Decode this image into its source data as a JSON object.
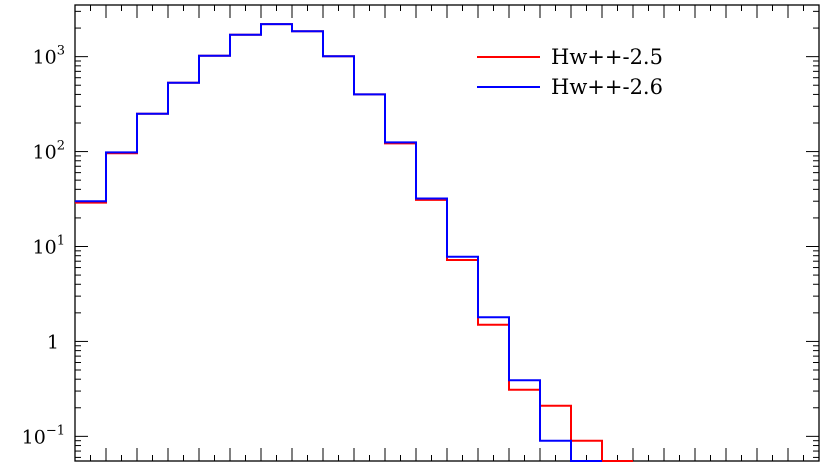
{
  "chart_data": {
    "type": "line",
    "step": true,
    "yscale": "log",
    "ylim": [
      0.055,
      3500
    ],
    "xlim": [
      0,
      24
    ],
    "x_edges": [
      0,
      1,
      2,
      3,
      4,
      5,
      6,
      7,
      8,
      9,
      10,
      11,
      12,
      13,
      14,
      15,
      16,
      17,
      18,
      19,
      20,
      21,
      22,
      23,
      24
    ],
    "y_ticks": [
      {
        "value": 1000,
        "mantissa": "10",
        "exp": "3"
      },
      {
        "value": 100,
        "mantissa": "10",
        "exp": "2"
      },
      {
        "value": 10,
        "mantissa": "10",
        "exp": "1"
      },
      {
        "value": 1,
        "mantissa": "1",
        "exp": ""
      },
      {
        "value": 0.1,
        "mantissa": "10",
        "exp": "−1"
      }
    ],
    "legend_position": "top-right",
    "series": [
      {
        "name": "Hw++-2.5",
        "color": "#ff0000",
        "values": [
          29,
          96,
          250,
          530,
          1020,
          1700,
          2200,
          1850,
          1010,
          400,
          122,
          31,
          7.2,
          1.5,
          0.31,
          0.21,
          0.09,
          0.05
        ]
      },
      {
        "name": "Hw++-2.6",
        "color": "#0000ff",
        "values": [
          30,
          98,
          250,
          530,
          1020,
          1700,
          2200,
          1850,
          1010,
          400,
          125,
          32,
          7.8,
          1.8,
          0.39,
          0.09,
          0.05
        ]
      }
    ]
  }
}
